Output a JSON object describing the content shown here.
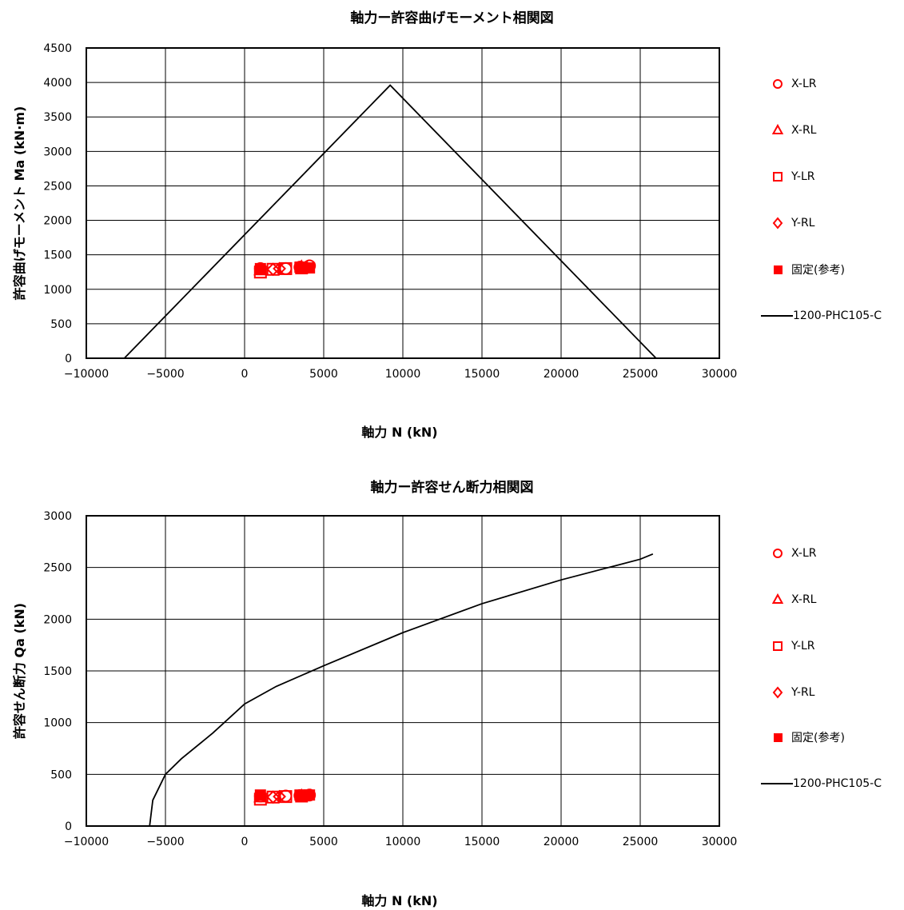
{
  "colors": {
    "marker": "#ff0000",
    "line": "#000000",
    "grid": "#000000"
  },
  "legend": [
    {
      "label": "X-LR",
      "symbol": "circle-open"
    },
    {
      "label": "X-RL",
      "symbol": "triangle-open"
    },
    {
      "label": "Y-LR",
      "symbol": "square-open"
    },
    {
      "label": "Y-RL",
      "symbol": "diamond-open"
    },
    {
      "label": "固定(参考)",
      "symbol": "square-filled"
    },
    {
      "label": "1200-PHC105-C",
      "symbol": "line"
    }
  ],
  "chart_data": [
    {
      "type": "line",
      "title": "軸力ー許容曲げモーメント相関図",
      "xlabel": "軸力 N (kN)",
      "ylabel": "許容曲げモーメント Ma (kN·m)",
      "xlim": [
        -10000,
        30000
      ],
      "ylim": [
        0,
        4500
      ],
      "xticks": [
        -10000,
        -5000,
        0,
        5000,
        10000,
        15000,
        20000,
        25000,
        30000
      ],
      "yticks": [
        0,
        500,
        1000,
        1500,
        2000,
        2500,
        3000,
        3500,
        4000,
        4500
      ],
      "grid": true,
      "legend_position": "right",
      "series": [
        {
          "name": "1200-PHC105-C",
          "kind": "line",
          "x": [
            -7600,
            9200,
            26000
          ],
          "y": [
            0,
            3960,
            0
          ]
        },
        {
          "name": "X-LR",
          "kind": "circle-open",
          "x": [
            1000,
            2600,
            3500,
            4100
          ],
          "y": [
            1300,
            1300,
            1320,
            1340
          ]
        },
        {
          "name": "X-RL",
          "kind": "triangle-open",
          "x": [
            1000,
            3600
          ],
          "y": [
            1280,
            1330
          ]
        },
        {
          "name": "Y-LR",
          "kind": "square-open",
          "x": [
            1000,
            1800,
            2600,
            3600
          ],
          "y": [
            1250,
            1290,
            1300,
            1310
          ]
        },
        {
          "name": "Y-RL",
          "kind": "diamond-open",
          "x": [
            1800,
            2200
          ],
          "y": [
            1290,
            1300
          ]
        },
        {
          "name": "固定(参考)",
          "kind": "square-filled",
          "x": [
            1000,
            3500,
            3800,
            4100
          ],
          "y": [
            1300,
            1320,
            1310,
            1310
          ]
        }
      ]
    },
    {
      "type": "line",
      "title": "軸力ー許容せん断力相関図",
      "xlabel": "軸力 N (kN)",
      "ylabel": "許容せん断力 Qa (kN)",
      "xlim": [
        -10000,
        30000
      ],
      "ylim": [
        0,
        3000
      ],
      "xticks": [
        -10000,
        -5000,
        0,
        5000,
        10000,
        15000,
        20000,
        25000,
        30000
      ],
      "yticks": [
        0,
        500,
        1000,
        1500,
        2000,
        2500,
        3000
      ],
      "grid": true,
      "legend_position": "right",
      "series": [
        {
          "name": "1200-PHC105-C",
          "kind": "line",
          "x": [
            -6000,
            -5800,
            -5000,
            -4000,
            -2000,
            0,
            2000,
            5000,
            10000,
            15000,
            20000,
            25000,
            25800
          ],
          "y": [
            0,
            250,
            500,
            650,
            900,
            1180,
            1350,
            1550,
            1870,
            2150,
            2380,
            2580,
            2630
          ]
        },
        {
          "name": "X-LR",
          "kind": "circle-open",
          "x": [
            1000,
            2600,
            3500,
            4100
          ],
          "y": [
            290,
            290,
            295,
            300
          ]
        },
        {
          "name": "X-RL",
          "kind": "triangle-open",
          "x": [
            1000,
            3600
          ],
          "y": [
            280,
            295
          ]
        },
        {
          "name": "Y-LR",
          "kind": "square-open",
          "x": [
            1000,
            1800,
            2600,
            3600
          ],
          "y": [
            260,
            280,
            285,
            290
          ]
        },
        {
          "name": "Y-RL",
          "kind": "diamond-open",
          "x": [
            1800,
            2200
          ],
          "y": [
            280,
            285
          ]
        },
        {
          "name": "固定(参考)",
          "kind": "square-filled",
          "x": [
            1000,
            3500,
            3800,
            4100
          ],
          "y": [
            300,
            300,
            300,
            300
          ]
        }
      ]
    }
  ]
}
